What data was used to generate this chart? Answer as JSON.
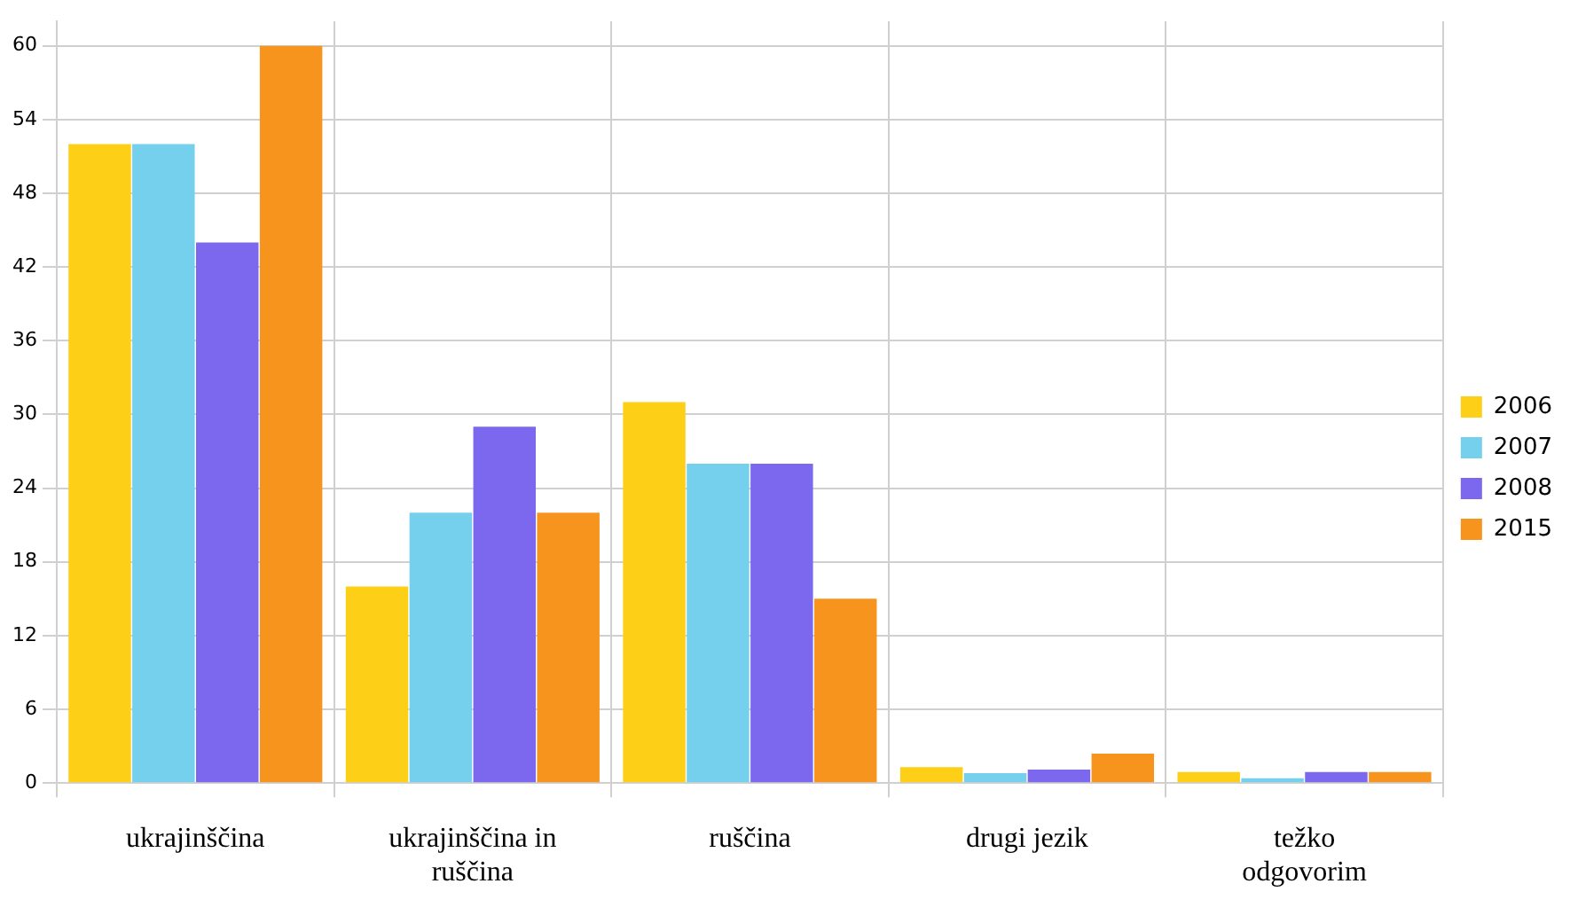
{
  "chart_data": {
    "type": "bar",
    "categories": [
      "ukrajinščina",
      "ukrajinščina in ruščina",
      "ruščina",
      "drugi jezik",
      "težko odgovorim"
    ],
    "series": [
      {
        "name": "2006",
        "color": "#fdd017",
        "values": [
          52,
          16,
          31,
          1.3,
          0.9
        ]
      },
      {
        "name": "2007",
        "color": "#74d0ec",
        "values": [
          52,
          22,
          26,
          0.8,
          0.4
        ]
      },
      {
        "name": "2008",
        "color": "#7b68ee",
        "values": [
          44,
          29,
          26,
          1.1,
          0.9
        ]
      },
      {
        "name": "2015",
        "color": "#f7941d",
        "values": [
          60,
          22,
          15,
          2.4,
          0.9
        ]
      }
    ],
    "ylim": [
      0,
      62
    ],
    "yticks": [
      0,
      6,
      12,
      18,
      24,
      30,
      36,
      42,
      48,
      54,
      60
    ],
    "grid": true,
    "legend": "right"
  }
}
